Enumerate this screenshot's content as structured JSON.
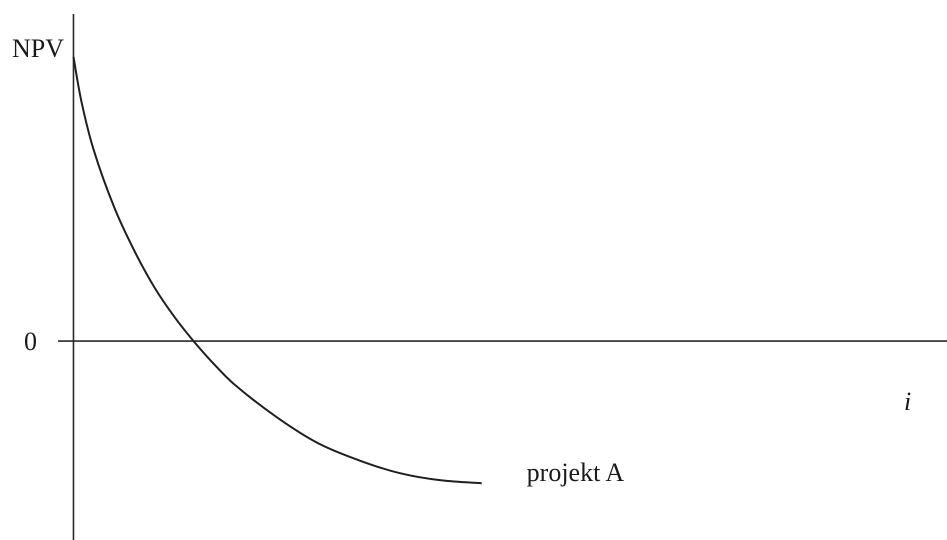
{
  "chart_data": {
    "type": "line",
    "title": "",
    "ylabel": "NPV",
    "xlabel": "i",
    "y_tick_labels": [
      "0"
    ],
    "series": [
      {
        "name": "projekt A",
        "x": [
          0.0,
          0.01,
          0.025,
          0.05,
          0.075,
          0.1,
          0.125,
          0.15,
          0.175,
          0.2,
          0.25,
          0.3,
          0.35,
          0.4,
          0.45,
          0.5
        ],
        "y": [
          1.0,
          0.84,
          0.67,
          0.47,
          0.315,
          0.185,
          0.08,
          -0.01,
          -0.09,
          -0.16,
          -0.27,
          -0.36,
          -0.42,
          -0.465,
          -0.49,
          -0.5
        ]
      }
    ],
    "xlim": [
      -0.09,
      1.07
    ],
    "ylim": [
      -0.7,
      1.2
    ],
    "grid": false,
    "legend": "none"
  }
}
